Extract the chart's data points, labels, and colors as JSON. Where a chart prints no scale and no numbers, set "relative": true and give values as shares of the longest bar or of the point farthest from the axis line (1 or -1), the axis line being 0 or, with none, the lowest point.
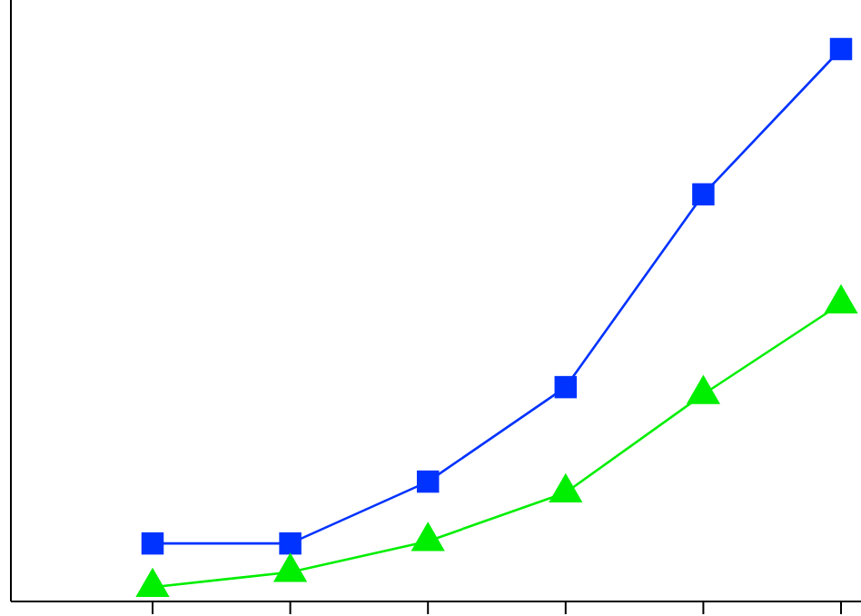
{
  "chart_data": {
    "type": "line",
    "relative": true,
    "categories": [
      null,
      null,
      null,
      null,
      null,
      null
    ],
    "series": [
      {
        "color": "#0033ff",
        "marker": "square",
        "values": [
          0.105,
          0.105,
          0.217,
          0.388,
          0.737,
          1
        ]
      },
      {
        "color": "#00ee00",
        "marker": "triangle",
        "values": [
          0.026,
          0.053,
          0.109,
          0.197,
          0.375,
          0.539
        ]
      }
    ],
    "line_style": "solid"
  }
}
